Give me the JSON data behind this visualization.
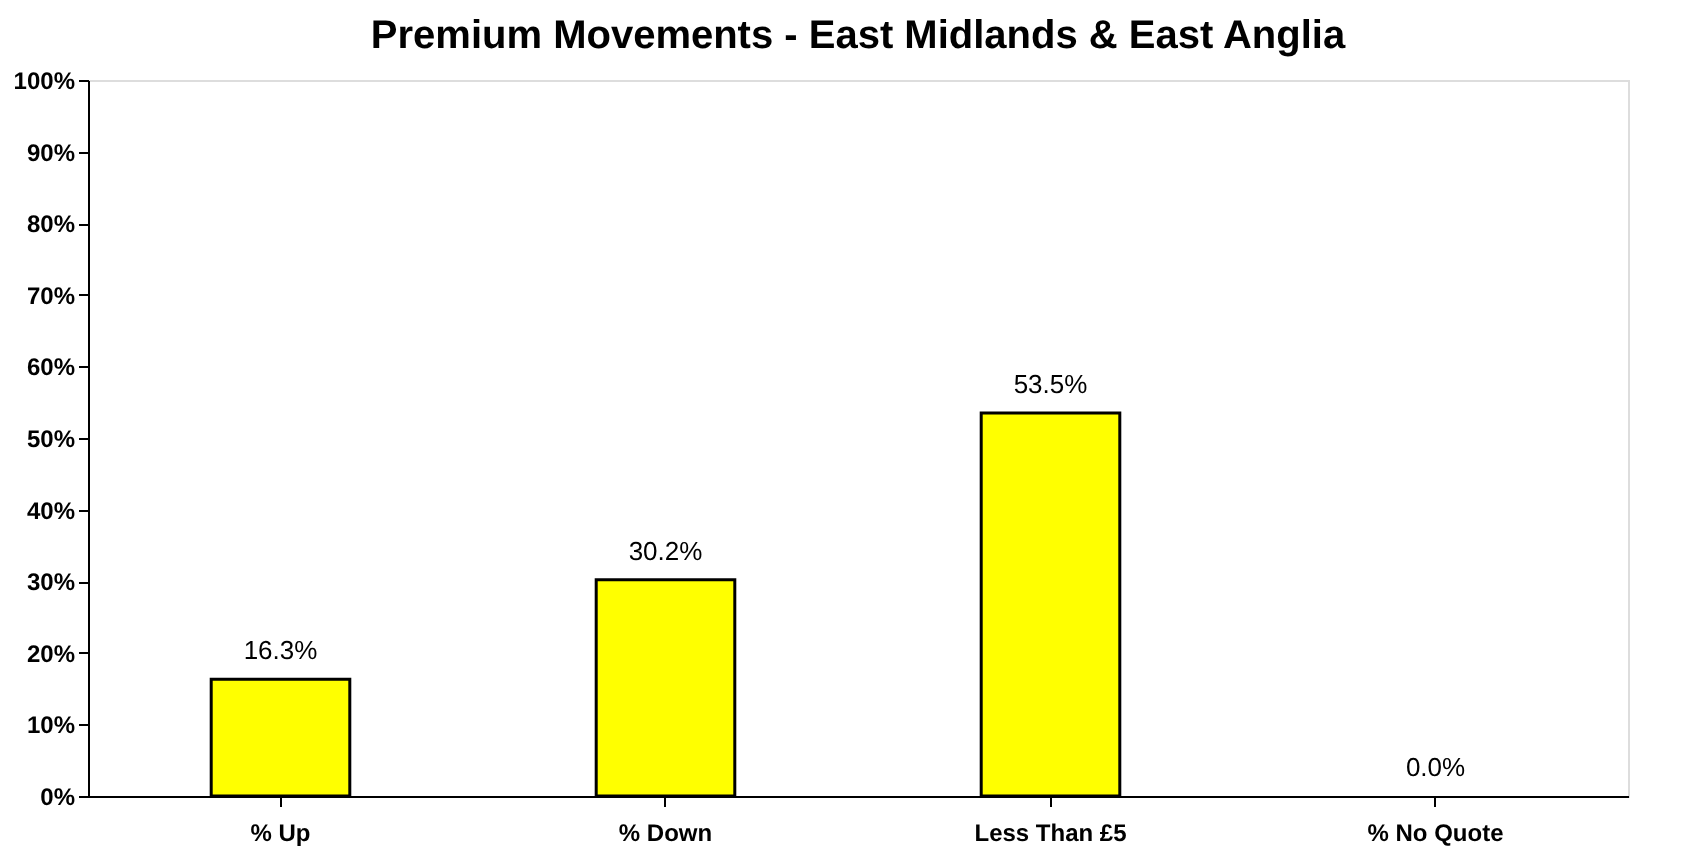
{
  "chart_data": {
    "type": "bar",
    "title": "Premium Movements - East Midlands & East Anglia",
    "categories": [
      "% Up",
      "% Down",
      "Less Than £5",
      "% No Quote"
    ],
    "values": [
      16.3,
      30.2,
      53.5,
      0.0
    ],
    "value_labels": [
      "16.3%",
      "30.2%",
      "53.5%",
      "0.0%"
    ],
    "color": "#ffff00",
    "ylim": [
      0,
      100
    ],
    "yticks": [
      {
        "value": 0,
        "label": "0%"
      },
      {
        "value": 10,
        "label": "10%"
      },
      {
        "value": 20,
        "label": "20%"
      },
      {
        "value": 30,
        "label": "30%"
      },
      {
        "value": 40,
        "label": "40%"
      },
      {
        "value": 50,
        "label": "50%"
      },
      {
        "value": 60,
        "label": "60%"
      },
      {
        "value": 70,
        "label": "70%"
      },
      {
        "value": 80,
        "label": "80%"
      },
      {
        "value": 90,
        "label": "90%"
      },
      {
        "value": 100,
        "label": "100%"
      }
    ],
    "grid": false
  }
}
